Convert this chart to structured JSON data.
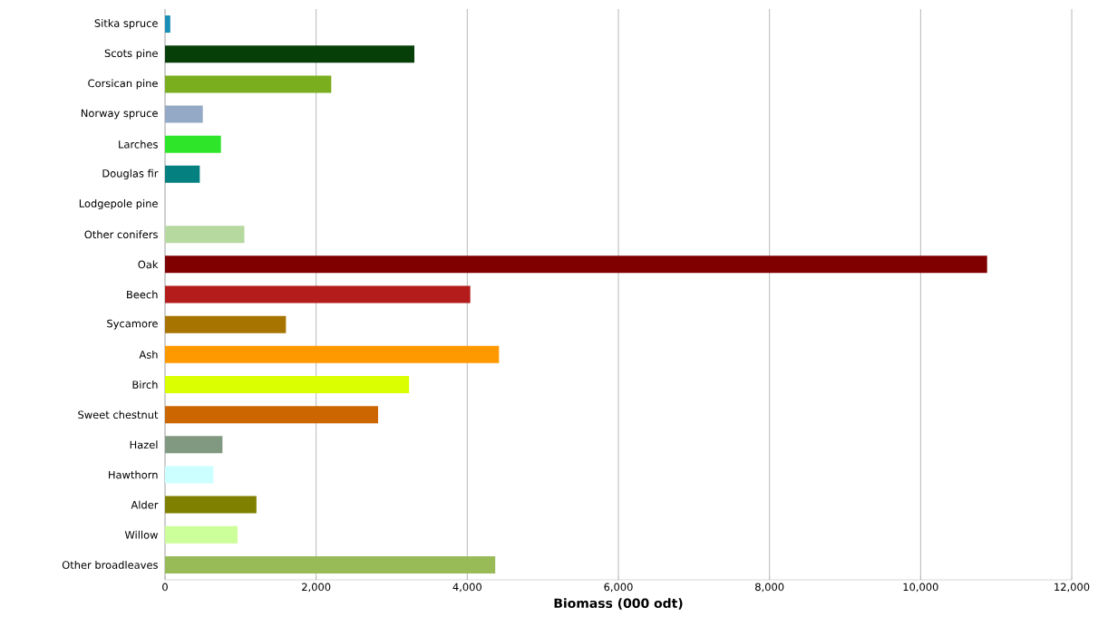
{
  "chart_data": {
    "type": "bar",
    "orientation": "horizontal",
    "xlabel": "Biomass (000 odt)",
    "categories": [
      "Sitka spruce",
      "Scots pine",
      "Corsican pine",
      "Norway spruce",
      "Larches",
      "Douglas fir",
      "Lodgepole pine",
      "Other conifers",
      "Oak",
      "Beech",
      "Sycamore",
      "Ash",
      "Birch",
      "Sweet chestnut",
      "Hazel",
      "Hawthorn",
      "Alder",
      "Willow",
      "Other broadleaves"
    ],
    "values": [
      70,
      3300,
      2200,
      500,
      740,
      460,
      0,
      1050,
      10880,
      4040,
      1600,
      4420,
      3230,
      2820,
      760,
      640,
      1210,
      960,
      4370
    ],
    "colors": [
      "#1a8fb5",
      "#073f08",
      "#7aae1e",
      "#93a9c5",
      "#2ee52a",
      "#058080",
      "#ffffff",
      "#b6d99f",
      "#800000",
      "#b41c1c",
      "#a87400",
      "#ff9900",
      "#d9ff00",
      "#cc6600",
      "#819980",
      "#ccffff",
      "#808000",
      "#ccff99",
      "#98bb57"
    ],
    "xlim": [
      0,
      12000
    ],
    "xticks": [
      0,
      {
        "value": 2000,
        "label": "2,000"
      },
      {
        "value": 4000,
        "label": "4,000"
      },
      {
        "value": 6000,
        "label": "6,000"
      },
      {
        "value": 8000,
        "label": "8,000"
      },
      {
        "value": 10000,
        "label": "10,000"
      },
      {
        "value": 12000,
        "label": "12,000"
      }
    ],
    "grid": "x"
  }
}
